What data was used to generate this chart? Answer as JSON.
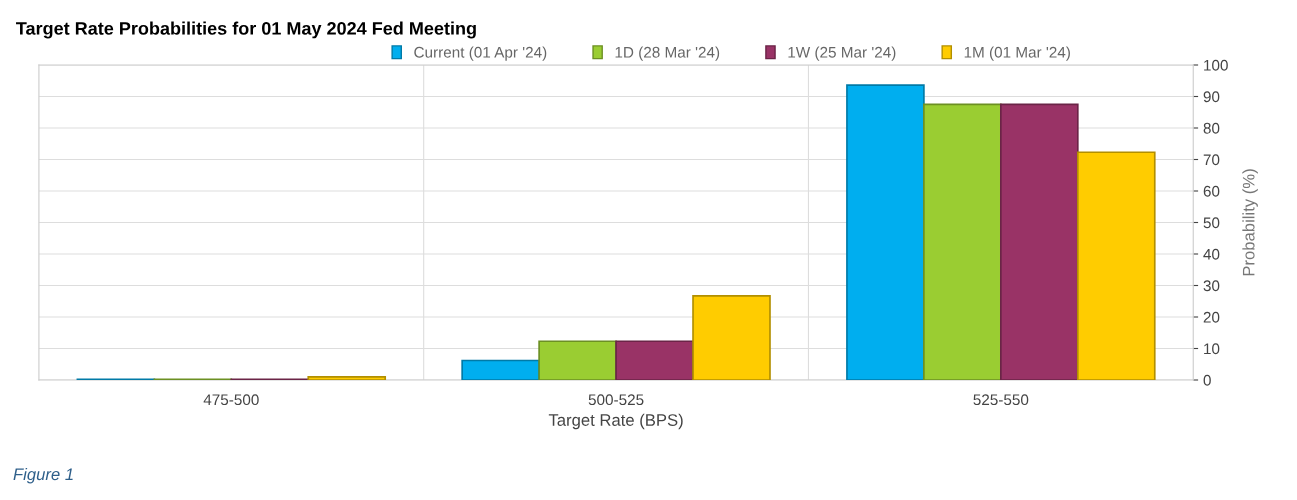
{
  "chart_data": {
    "type": "bar",
    "title": "Target Rate Probabilities for 01 May 2024 Fed Meeting",
    "xlabel": "Target Rate (BPS)",
    "ylabel": "Probability (%)",
    "categories": [
      "475-500",
      "500-525",
      "525-550"
    ],
    "series": [
      {
        "name": "Current (01 Apr '24)",
        "color": "#00aeef",
        "values": [
          0.2,
          6.2,
          93.6
        ]
      },
      {
        "name": "1D (28 Mar '24)",
        "color": "#9acd32",
        "values": [
          0.2,
          12.3,
          87.5
        ]
      },
      {
        "name": "1W (25 Mar '24)",
        "color": "#993366",
        "values": [
          0.2,
          12.3,
          87.5
        ]
      },
      {
        "name": "1M (01 Mar '24)",
        "color": "#ffcc00",
        "values": [
          1.0,
          26.7,
          72.3
        ]
      }
    ],
    "ylim": [
      0,
      100
    ],
    "yticks": [
      0,
      10,
      20,
      30,
      40,
      50,
      60,
      70,
      80,
      90,
      100
    ],
    "grid": true,
    "legend": "top",
    "annotations": [
      "Figure 1"
    ]
  }
}
